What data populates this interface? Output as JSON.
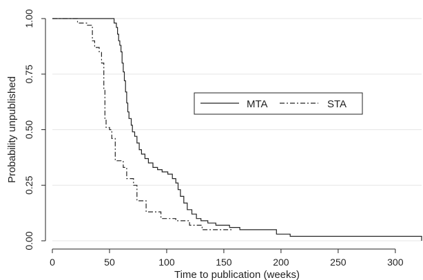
{
  "chart_data": {
    "type": "line",
    "title": "",
    "xlabel": "Time to publication (weeks)",
    "ylabel": "Probability unpublished",
    "xlim": [
      0,
      323
    ],
    "ylim": [
      0,
      1
    ],
    "x_ticks": [
      "0",
      "50",
      "100",
      "150",
      "200",
      "250",
      "300"
    ],
    "y_ticks": [
      "0.00",
      "0.25",
      "0.50",
      "0.75",
      "1.00"
    ],
    "grid": "horizontal",
    "legend_position": "right-center",
    "series": [
      {
        "name": "MTA",
        "style": "solid",
        "color": "#222222",
        "points": [
          [
            0,
            1.0
          ],
          [
            52,
            1.0
          ],
          [
            54,
            0.98
          ],
          [
            56,
            0.96
          ],
          [
            57,
            0.93
          ],
          [
            58,
            0.9
          ],
          [
            59,
            0.88
          ],
          [
            60,
            0.85
          ],
          [
            61,
            0.8
          ],
          [
            62,
            0.76
          ],
          [
            63,
            0.72
          ],
          [
            64,
            0.67
          ],
          [
            65,
            0.62
          ],
          [
            66,
            0.58
          ],
          [
            67,
            0.55
          ],
          [
            69,
            0.52
          ],
          [
            70,
            0.49
          ],
          [
            72,
            0.47
          ],
          [
            74,
            0.44
          ],
          [
            76,
            0.41
          ],
          [
            78,
            0.39
          ],
          [
            81,
            0.37
          ],
          [
            84,
            0.35
          ],
          [
            88,
            0.33
          ],
          [
            92,
            0.32
          ],
          [
            96,
            0.31
          ],
          [
            101,
            0.3
          ],
          [
            105,
            0.28
          ],
          [
            108,
            0.26
          ],
          [
            110,
            0.23
          ],
          [
            112,
            0.2
          ],
          [
            115,
            0.17
          ],
          [
            118,
            0.14
          ],
          [
            122,
            0.12
          ],
          [
            126,
            0.1
          ],
          [
            130,
            0.09
          ],
          [
            136,
            0.08
          ],
          [
            143,
            0.07
          ],
          [
            155,
            0.06
          ],
          [
            164,
            0.05
          ],
          [
            177,
            0.05
          ],
          [
            196,
            0.03
          ],
          [
            208,
            0.02
          ],
          [
            323,
            0.0
          ]
        ]
      },
      {
        "name": "STA",
        "style": "dash-dot",
        "color": "#222222",
        "points": [
          [
            0,
            1.0
          ],
          [
            20,
            1.0
          ],
          [
            22,
            0.98
          ],
          [
            30,
            0.97
          ],
          [
            35,
            0.9
          ],
          [
            37,
            0.87
          ],
          [
            41,
            0.85
          ],
          [
            43,
            0.8
          ],
          [
            45,
            0.68
          ],
          [
            46,
            0.55
          ],
          [
            47,
            0.51
          ],
          [
            50,
            0.5
          ],
          [
            52,
            0.46
          ],
          [
            55,
            0.36
          ],
          [
            62,
            0.33
          ],
          [
            65,
            0.28
          ],
          [
            71,
            0.25
          ],
          [
            74,
            0.18
          ],
          [
            82,
            0.13
          ],
          [
            95,
            0.1
          ],
          [
            108,
            0.09
          ],
          [
            120,
            0.07
          ],
          [
            131,
            0.05
          ],
          [
            157,
            0.05
          ]
        ]
      }
    ]
  }
}
